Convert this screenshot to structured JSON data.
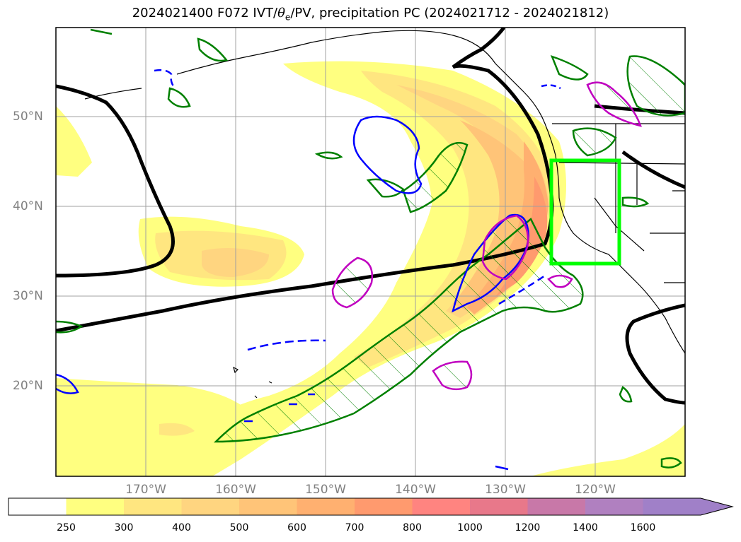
{
  "title": {
    "prefix": "2024021400 F072 IVT/",
    "theta": "θ",
    "theta_sub": "e",
    "suffix": "/PV, precipitation PC (2024021712 - 2024021812)"
  },
  "lat_labels": [
    "50°N",
    "40°N",
    "30°N",
    "20°N"
  ],
  "lon_labels": [
    "170°W",
    "160°W",
    "150°W",
    "140°W",
    "130°W",
    "120°W"
  ],
  "colorbar": {
    "levels": [
      "250",
      "300",
      "400",
      "500",
      "600",
      "700",
      "800",
      "1000",
      "1200",
      "1400",
      "1600"
    ],
    "colors": [
      "#ffff80",
      "#ffe680",
      "#ffd580",
      "#ffc478",
      "#ffb070",
      "#ff9a6e",
      "#ff8480",
      "#e8788a",
      "#c878a8",
      "#b080c0",
      "#a080c8"
    ]
  },
  "legend_colors": {
    "theta_e_contour": "#000000",
    "pv_positive": "#0000ff",
    "precip_contour": "#008000",
    "pv_magenta": "#c000c0",
    "target_box": "#00ff00"
  }
}
